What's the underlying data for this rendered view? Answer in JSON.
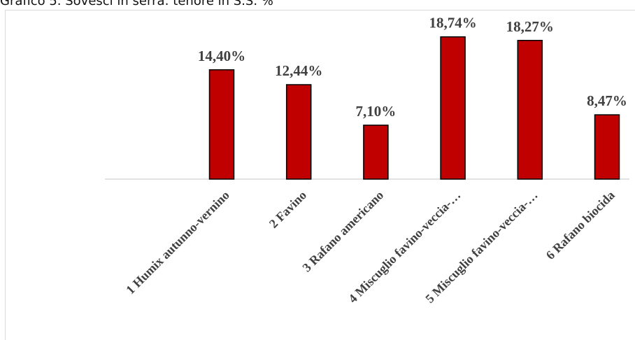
{
  "caption": "Grafico 5. Sovesci in serra: tenore in S.S. %",
  "chart_data": {
    "type": "bar",
    "categories": [
      "1 Humix autunno-vernino",
      "2 Favino",
      "3 Rafano americano",
      "4 Miscuglio favino-veccia-…",
      "5 Miscuglio favino-veccia-…",
      "6 Rafano biocida"
    ],
    "values": [
      14.4,
      12.44,
      7.1,
      18.74,
      18.27,
      8.47
    ],
    "data_labels": [
      "14,40%",
      "12,44%",
      "7,10%",
      "18,74%",
      "18,27%",
      "8,47%"
    ],
    "title": "",
    "xlabel": "",
    "ylabel": "",
    "ylim": [
      0,
      20
    ],
    "grid": false,
    "legend": "none",
    "bar_color": "#C00000",
    "bar_outline": "#000000"
  }
}
